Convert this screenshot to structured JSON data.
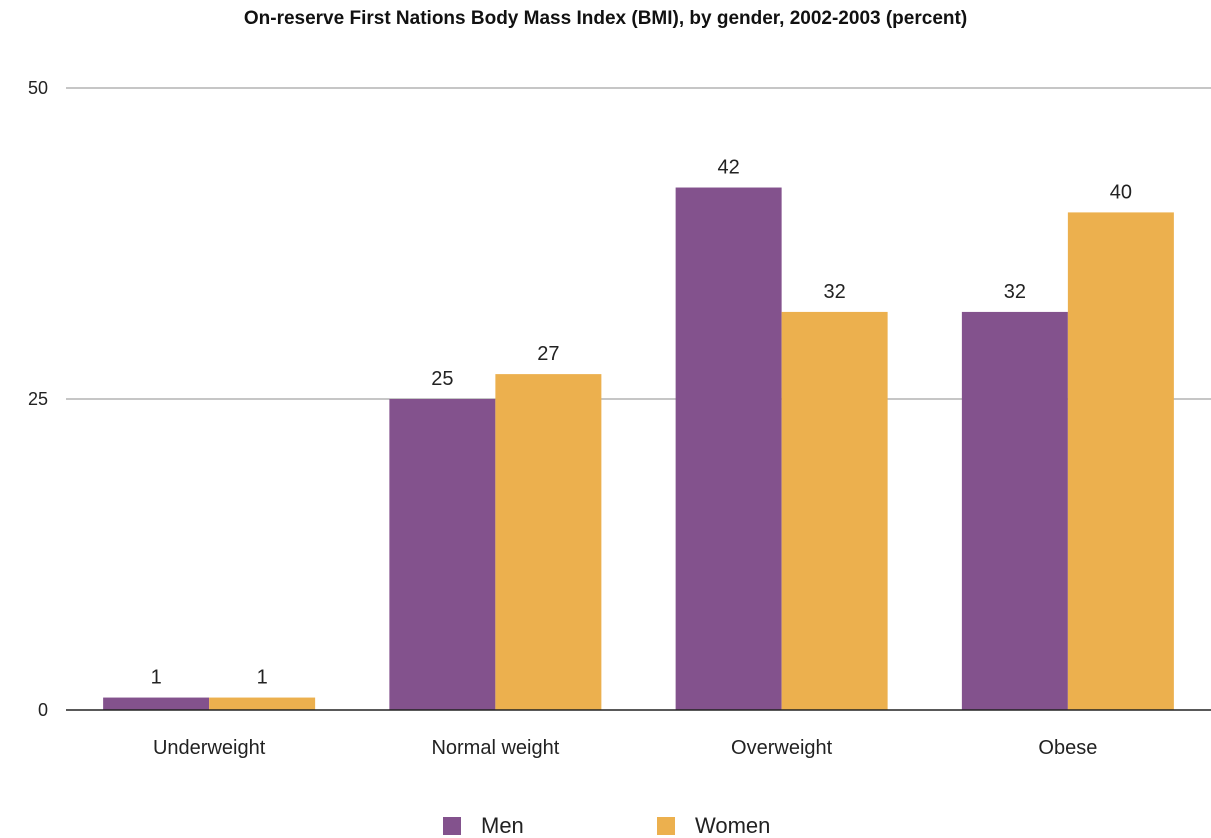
{
  "chart_data": {
    "type": "bar",
    "title": "On-reserve First Nations Body Mass Index (BMI), by gender, 2002-2003 (percent)",
    "categories": [
      "Underweight",
      "Normal weight",
      "Overweight",
      "Obese"
    ],
    "series": [
      {
        "name": "Men",
        "values": [
          1,
          25,
          42,
          32
        ],
        "color": "#83528d"
      },
      {
        "name": "Women",
        "values": [
          1,
          27,
          32,
          40
        ],
        "color": "#ecb04e"
      }
    ],
    "y_ticks": [
      "0",
      "25",
      "50"
    ],
    "ylim": [
      0,
      50
    ],
    "grid": true,
    "legend_position": "bottom"
  }
}
